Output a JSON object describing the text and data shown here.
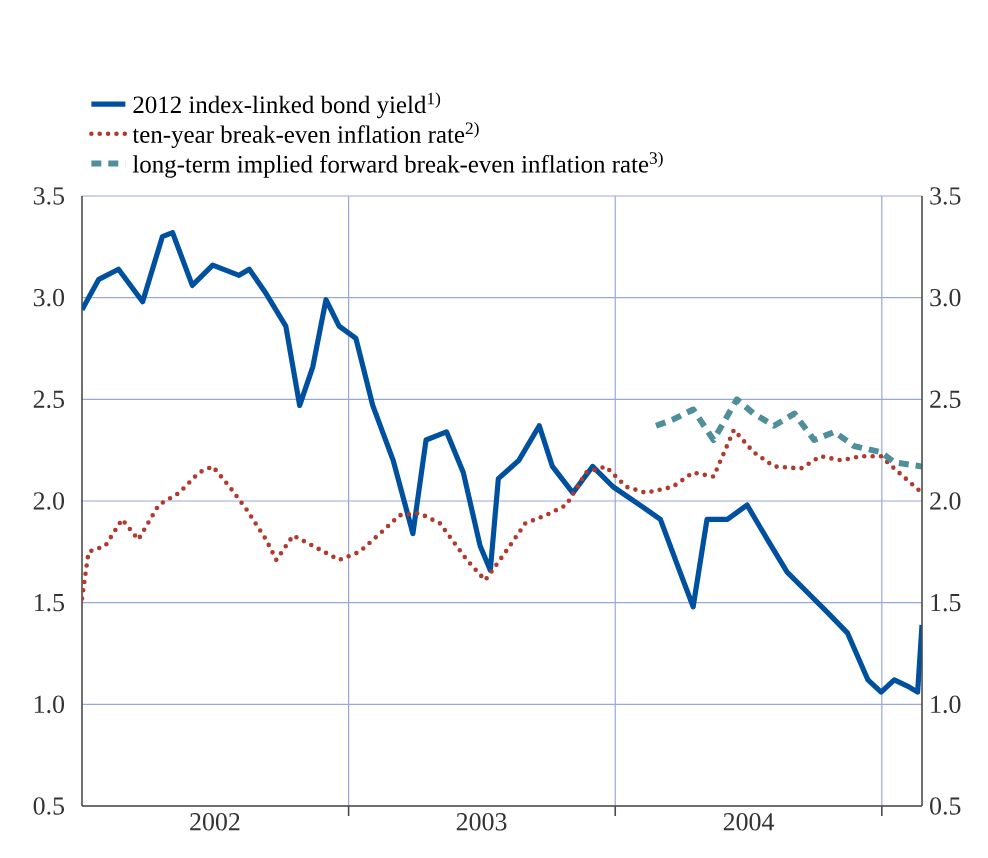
{
  "chart_data": {
    "type": "line",
    "xlim": [
      "2002-01-01",
      "2005-02-25"
    ],
    "xticks": [
      {
        "value": "2003-01-01",
        "label": null
      },
      {
        "value": "2004-01-01",
        "label": null
      },
      {
        "value": "2005-01-01",
        "label": null
      },
      {
        "value": "2002-07-02",
        "label": "2002"
      },
      {
        "value": "2003-07-02",
        "label": "2003"
      },
      {
        "value": "2004-07-02",
        "label": "2004"
      }
    ],
    "ylim": [
      0.5,
      3.5
    ],
    "yticks": [
      0.5,
      {
        "value": 1,
        "label": "1.0"
      },
      1.5,
      {
        "value": 2,
        "label": "2.0"
      },
      2.5,
      {
        "value": 3,
        "label": "3.0"
      },
      3.5
    ],
    "y2lim": [
      0.5,
      3.5
    ],
    "y2ticks": [
      0.5,
      {
        "value": 1,
        "label": "1.0"
      },
      1.5,
      {
        "value": 2,
        "label": "2.0"
      },
      2.5,
      {
        "value": 3,
        "label": "3.0"
      },
      3.5
    ],
    "grid": true,
    "legend": "top",
    "marker": "none",
    "series": [
      {
        "name": "2012 index-linked bond yield$^{1)}$",
        "color": "#0050a0",
        "line_style": "solid",
        "x": [
          "2002-01-01",
          "2002-01-24",
          "2002-02-20",
          "2002-03-25",
          "2002-04-21",
          "2002-05-05",
          "2002-06-01",
          "2002-06-29",
          "2002-08-04",
          "2002-08-18",
          "2002-09-10",
          "2002-10-07",
          "2002-10-26",
          "2002-11-13",
          "2002-12-01",
          "2002-12-19",
          "2003-01-11",
          "2003-02-03",
          "2003-03-03",
          "2003-03-30",
          "2003-04-17",
          "2003-05-15",
          "2003-06-07",
          "2003-06-30",
          "2003-07-14",
          "2003-07-25",
          "2003-08-22",
          "2003-09-19",
          "2003-10-07",
          "2003-11-04",
          "2003-12-01",
          "2003-12-29",
          "2004-02-04",
          "2004-03-03",
          "2004-03-30",
          "2004-04-17",
          "2004-05-06",
          "2004-06-03",
          "2004-06-30",
          "2004-07-28",
          "2004-08-24",
          "2004-09-21",
          "2004-10-19",
          "2004-11-15",
          "2004-12-13",
          "2004-12-31",
          "2005-01-18",
          "2005-02-05",
          "2005-02-19",
          "2005-02-25"
        ],
        "values": [
          2.94,
          3.09,
          3.14,
          2.98,
          3.3,
          3.32,
          3.06,
          3.16,
          3.11,
          3.14,
          3.02,
          2.86,
          2.47,
          2.66,
          2.99,
          2.86,
          2.8,
          2.47,
          2.2,
          1.84,
          2.3,
          2.34,
          2.14,
          1.78,
          1.66,
          2.11,
          2.2,
          2.37,
          2.17,
          2.04,
          2.17,
          2.07,
          1.98,
          1.91,
          1.65,
          1.48,
          1.91,
          1.91,
          1.98,
          1.81,
          1.65,
          1.55,
          1.45,
          1.35,
          1.12,
          1.06,
          1.12,
          1.09,
          1.06,
          1.39
        ]
      },
      {
        "name": "ten-year break-even inflation rate$^{2)}$",
        "color": "#b03a2e",
        "line_style": "dotted",
        "x": [
          "2002-01-01",
          "2002-01-10",
          "2002-02-02",
          "2002-02-25",
          "2002-03-19",
          "2002-04-16",
          "2002-05-14",
          "2002-06-10",
          "2002-06-29",
          "2002-07-22",
          "2002-08-14",
          "2002-09-10",
          "2002-09-24",
          "2002-10-17",
          "2002-11-13",
          "2002-12-19",
          "2003-01-16",
          "2003-02-13",
          "2003-03-12",
          "2003-04-08",
          "2003-05-06",
          "2003-06-12",
          "2003-07-07",
          "2003-08-04",
          "2003-08-31",
          "2003-09-28",
          "2003-10-26",
          "2003-11-22",
          "2003-12-19",
          "2004-01-16",
          "2004-02-12",
          "2004-03-20",
          "2004-04-17",
          "2004-05-15",
          "2004-06-12",
          "2004-07-09",
          "2004-08-06",
          "2004-09-12",
          "2004-10-09",
          "2004-11-06",
          "2004-12-03",
          "2004-12-31",
          "2005-01-18",
          "2005-02-25"
        ],
        "values": [
          1.52,
          1.75,
          1.78,
          1.91,
          1.81,
          1.98,
          2.04,
          2.14,
          2.17,
          2.07,
          1.96,
          1.81,
          1.71,
          1.83,
          1.78,
          1.71,
          1.75,
          1.84,
          1.93,
          1.94,
          1.89,
          1.71,
          1.61,
          1.75,
          1.89,
          1.93,
          1.98,
          2.14,
          2.17,
          2.07,
          2.04,
          2.07,
          2.14,
          2.12,
          2.35,
          2.24,
          2.17,
          2.16,
          2.22,
          2.2,
          2.22,
          2.22,
          2.16,
          2.04
        ]
      },
      {
        "name": "long-term implied forward break-even inflation rate$^{3)}$",
        "color": "#4f8f9a",
        "line_style": "dashed",
        "x": [
          "2004-02-26",
          "2004-03-20",
          "2004-04-17",
          "2004-05-15",
          "2004-06-16",
          "2004-07-09",
          "2004-08-06",
          "2004-09-03",
          "2004-09-30",
          "2004-10-28",
          "2004-11-24",
          "2004-12-31",
          "2005-01-18",
          "2005-02-25"
        ],
        "values": [
          2.37,
          2.4,
          2.45,
          2.3,
          2.5,
          2.43,
          2.37,
          2.43,
          2.3,
          2.34,
          2.27,
          2.24,
          2.19,
          2.17
        ]
      }
    ]
  }
}
